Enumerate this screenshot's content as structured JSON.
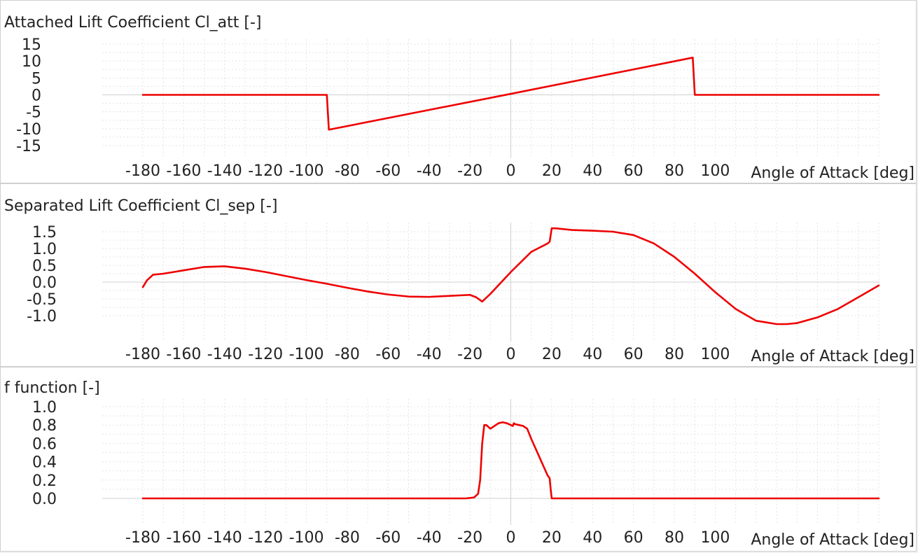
{
  "chart_data": [
    {
      "type": "line",
      "title": "Attached Lift Coefficient Cl_att [-]",
      "xlabel": "Angle of Attack [deg]",
      "ylabel": "",
      "xlim": [
        -180,
        180
      ],
      "ylim": [
        -15,
        15
      ],
      "xticks": [
        -180,
        -160,
        -140,
        -120,
        -100,
        -80,
        -60,
        -40,
        -20,
        0,
        20,
        40,
        60,
        80,
        100
      ],
      "xtick_labels": [
        "-180",
        "-160",
        "-140",
        "-120",
        "-100",
        "-80",
        "-60",
        "-40",
        "-20",
        "0",
        "20",
        "40",
        "60",
        "80",
        "100"
      ],
      "yticks": [
        15,
        10,
        5,
        0,
        -5,
        -10,
        -15
      ],
      "ytick_labels": [
        "15",
        "10",
        "5",
        "0",
        "-5",
        "-10",
        "-15"
      ],
      "grid": true,
      "color": "#ee0000",
      "series": [
        {
          "name": "Cl_att",
          "x": [
            -180,
            -90,
            -89,
            0,
            89,
            90,
            180
          ],
          "y": [
            0,
            0,
            -10.3,
            0.3,
            11,
            0,
            0
          ]
        }
      ]
    },
    {
      "type": "line",
      "title": "Separated Lift Coefficient Cl_sep [-]",
      "xlabel": "Angle of Attack [deg]",
      "ylabel": "",
      "xlim": [
        -180,
        180
      ],
      "ylim": [
        -1.5,
        1.5
      ],
      "xticks": [
        -180,
        -160,
        -140,
        -120,
        -100,
        -80,
        -60,
        -40,
        -20,
        0,
        20,
        40,
        60,
        80,
        100
      ],
      "xtick_labels": [
        "-180",
        "-160",
        "-140",
        "-120",
        "-100",
        "-80",
        "-60",
        "-40",
        "-20",
        "0",
        "20",
        "40",
        "60",
        "80",
        "100"
      ],
      "yticks": [
        1.5,
        1.0,
        0.5,
        0.0,
        -0.5,
        -1.0
      ],
      "ytick_labels": [
        "1.5",
        "1.0",
        "0.5",
        "0.0",
        "-0.5",
        "-1.0"
      ],
      "grid": true,
      "color": "#ee0000",
      "series": [
        {
          "name": "Cl_sep",
          "x": [
            -180,
            -178,
            -175,
            -170,
            -160,
            -150,
            -140,
            -130,
            -120,
            -110,
            -100,
            -90,
            -80,
            -70,
            -60,
            -50,
            -40,
            -30,
            -20,
            -17,
            -14,
            -10,
            0,
            10,
            18,
            19,
            20,
            22,
            30,
            40,
            50,
            60,
            70,
            80,
            90,
            100,
            110,
            120,
            130,
            135,
            140,
            150,
            160,
            170,
            180
          ],
          "y": [
            -0.15,
            0.05,
            0.22,
            0.25,
            0.35,
            0.45,
            0.47,
            0.4,
            0.3,
            0.18,
            0.06,
            -0.05,
            -0.17,
            -0.28,
            -0.37,
            -0.43,
            -0.44,
            -0.41,
            -0.38,
            -0.45,
            -0.58,
            -0.35,
            0.3,
            0.9,
            1.15,
            1.2,
            1.6,
            1.6,
            1.55,
            1.53,
            1.5,
            1.4,
            1.15,
            0.75,
            0.25,
            -0.3,
            -0.8,
            -1.15,
            -1.25,
            -1.25,
            -1.22,
            -1.05,
            -0.8,
            -0.45,
            -0.1
          ]
        }
      ]
    },
    {
      "type": "line",
      "title": "f function [-]",
      "xlabel": "Angle of Attack [deg]",
      "ylabel": "",
      "xlim": [
        -180,
        180
      ],
      "ylim": [
        -0.1,
        1.0
      ],
      "xticks": [
        -180,
        -160,
        -140,
        -120,
        -100,
        -80,
        -60,
        -40,
        -20,
        0,
        20,
        40,
        60,
        80,
        100
      ],
      "xtick_labels": [
        "-180",
        "-160",
        "-140",
        "-120",
        "-100",
        "-80",
        "-60",
        "-40",
        "-20",
        "0",
        "20",
        "40",
        "60",
        "80",
        "100"
      ],
      "yticks": [
        1.0,
        0.8,
        0.6,
        0.4,
        0.2,
        0.0
      ],
      "ytick_labels": [
        "1.0",
        "0.8",
        "0.6",
        "0.4",
        "0.2",
        "0.0"
      ],
      "grid": true,
      "color": "#ee0000",
      "series": [
        {
          "name": "f",
          "x": [
            -180,
            -22,
            -18,
            -16,
            -15,
            -14,
            -13,
            -12,
            -10,
            -8,
            -6,
            -4,
            -2,
            0,
            1,
            1.5,
            2,
            4,
            6,
            8,
            10,
            12,
            14,
            16,
            18,
            19,
            19.5,
            20,
            180
          ],
          "y": [
            0,
            0,
            0.01,
            0.05,
            0.2,
            0.6,
            0.8,
            0.8,
            0.76,
            0.79,
            0.82,
            0.83,
            0.82,
            0.8,
            0.79,
            0.82,
            0.81,
            0.8,
            0.79,
            0.76,
            0.65,
            0.55,
            0.45,
            0.35,
            0.25,
            0.22,
            0.1,
            0,
            0
          ]
        }
      ]
    }
  ]
}
